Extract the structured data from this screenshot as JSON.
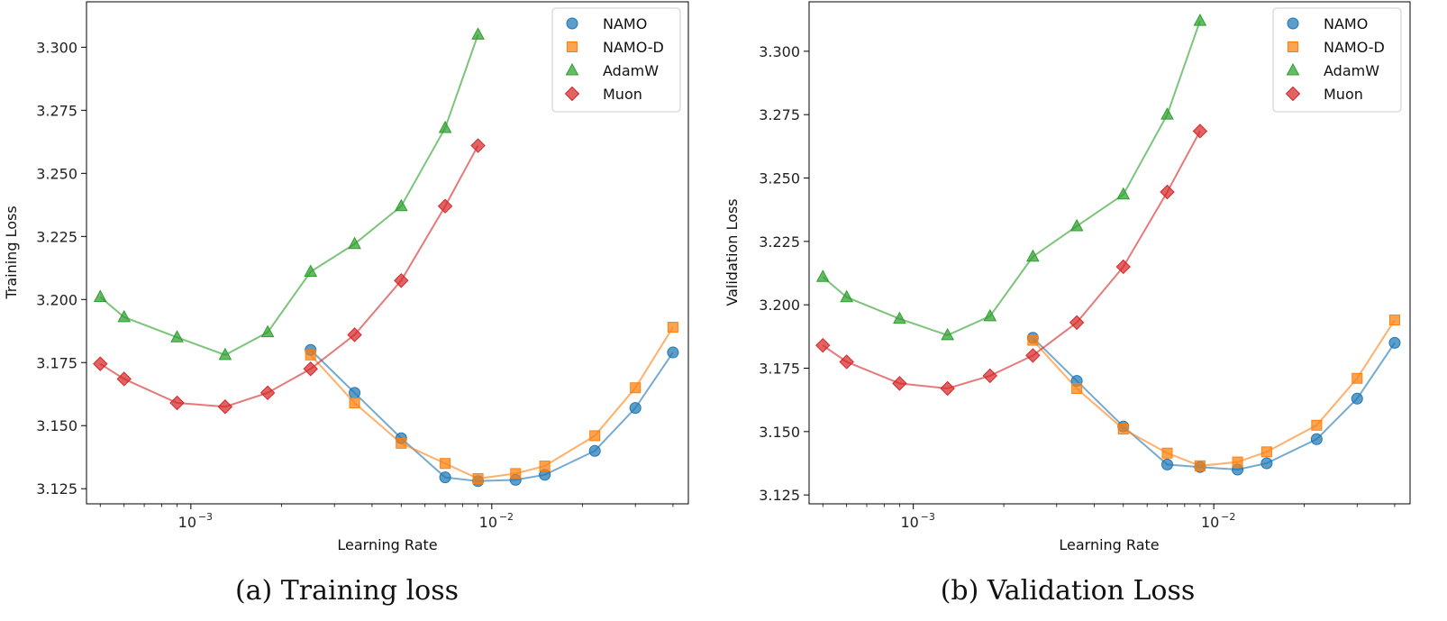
{
  "chart_data": [
    {
      "type": "line",
      "panel": "a",
      "title": "",
      "caption": "(a) Training loss",
      "xlabel": "Learning Rate",
      "ylabel": "Training Loss",
      "xscale": "log",
      "xlim": [
        0.00045,
        0.045
      ],
      "ylim": [
        3.119,
        3.318
      ],
      "yticks": [
        3.125,
        3.15,
        3.175,
        3.2,
        3.225,
        3.25,
        3.275,
        3.3
      ],
      "ytick_labels": [
        "3.125",
        "3.150",
        "3.175",
        "3.200",
        "3.225",
        "3.250",
        "3.275",
        "3.300"
      ],
      "xticks": [
        0.001,
        0.01
      ],
      "xtick_labels": [
        "10",
        "10"
      ],
      "xtick_exponents": [
        "−3",
        "−2"
      ],
      "legend_position": "top-right",
      "series": [
        {
          "name": "NAMO",
          "marker": "circle",
          "color": "#1f77b4",
          "x": [
            0.0025,
            0.0035,
            0.005,
            0.007,
            0.009,
            0.012,
            0.015,
            0.022,
            0.03,
            0.04
          ],
          "y": [
            3.18,
            3.163,
            3.145,
            3.1295,
            3.128,
            3.1285,
            3.1305,
            3.14,
            3.157,
            3.179
          ]
        },
        {
          "name": "NAMO-D",
          "marker": "square",
          "color": "#ff7f0e",
          "x": [
            0.0025,
            0.0035,
            0.005,
            0.007,
            0.009,
            0.012,
            0.015,
            0.022,
            0.03,
            0.04
          ],
          "y": [
            3.178,
            3.159,
            3.143,
            3.135,
            3.129,
            3.131,
            3.134,
            3.146,
            3.165,
            3.189
          ]
        },
        {
          "name": "AdamW",
          "marker": "triangle",
          "color": "#2ca02c",
          "x": [
            0.0005,
            0.0006,
            0.0009,
            0.0013,
            0.0018,
            0.0025,
            0.0035,
            0.005,
            0.007,
            0.009
          ],
          "y": [
            3.201,
            3.193,
            3.185,
            3.178,
            3.187,
            3.211,
            3.222,
            3.237,
            3.268,
            3.305
          ]
        },
        {
          "name": "Muon",
          "marker": "diamond",
          "color": "#d62728",
          "x": [
            0.0005,
            0.0006,
            0.0009,
            0.0013,
            0.0018,
            0.0025,
            0.0035,
            0.005,
            0.007,
            0.009
          ],
          "y": [
            3.1745,
            3.1685,
            3.159,
            3.1575,
            3.163,
            3.1725,
            3.186,
            3.2075,
            3.237,
            3.261
          ]
        }
      ]
    },
    {
      "type": "line",
      "panel": "b",
      "title": "",
      "caption": "(b) Validation Loss",
      "xlabel": "Learning Rate",
      "ylabel": "Validation Loss",
      "xscale": "log",
      "xlim": [
        0.00045,
        0.045
      ],
      "ylim": [
        3.1215,
        3.3195
      ],
      "yticks": [
        3.125,
        3.15,
        3.175,
        3.2,
        3.225,
        3.25,
        3.275,
        3.3
      ],
      "ytick_labels": [
        "3.125",
        "3.150",
        "3.175",
        "3.200",
        "3.225",
        "3.250",
        "3.275",
        "3.300"
      ],
      "xticks": [
        0.001,
        0.01
      ],
      "xtick_labels": [
        "10",
        "10"
      ],
      "xtick_exponents": [
        "−3",
        "−2"
      ],
      "legend_position": "top-right",
      "series": [
        {
          "name": "NAMO",
          "marker": "circle",
          "color": "#1f77b4",
          "x": [
            0.0025,
            0.0035,
            0.005,
            0.007,
            0.009,
            0.012,
            0.015,
            0.022,
            0.03,
            0.04
          ],
          "y": [
            3.187,
            3.17,
            3.152,
            3.137,
            3.136,
            3.135,
            3.1375,
            3.147,
            3.163,
            3.185
          ]
        },
        {
          "name": "NAMO-D",
          "marker": "square",
          "color": "#ff7f0e",
          "x": [
            0.0025,
            0.0035,
            0.005,
            0.007,
            0.009,
            0.012,
            0.015,
            0.022,
            0.03,
            0.04
          ],
          "y": [
            3.186,
            3.167,
            3.151,
            3.1415,
            3.1365,
            3.138,
            3.142,
            3.1525,
            3.171,
            3.194
          ]
        },
        {
          "name": "AdamW",
          "marker": "triangle",
          "color": "#2ca02c",
          "x": [
            0.0005,
            0.0006,
            0.0009,
            0.0013,
            0.0018,
            0.0025,
            0.0035,
            0.005,
            0.007,
            0.009
          ],
          "y": [
            3.211,
            3.203,
            3.1945,
            3.188,
            3.1955,
            3.219,
            3.231,
            3.2435,
            3.275,
            3.312
          ]
        },
        {
          "name": "Muon",
          "marker": "diamond",
          "color": "#d62728",
          "x": [
            0.0005,
            0.0006,
            0.0009,
            0.0013,
            0.0018,
            0.0025,
            0.0035,
            0.005,
            0.007,
            0.009
          ],
          "y": [
            3.184,
            3.1775,
            3.169,
            3.167,
            3.172,
            3.18,
            3.193,
            3.215,
            3.2445,
            3.2685
          ]
        }
      ]
    }
  ]
}
